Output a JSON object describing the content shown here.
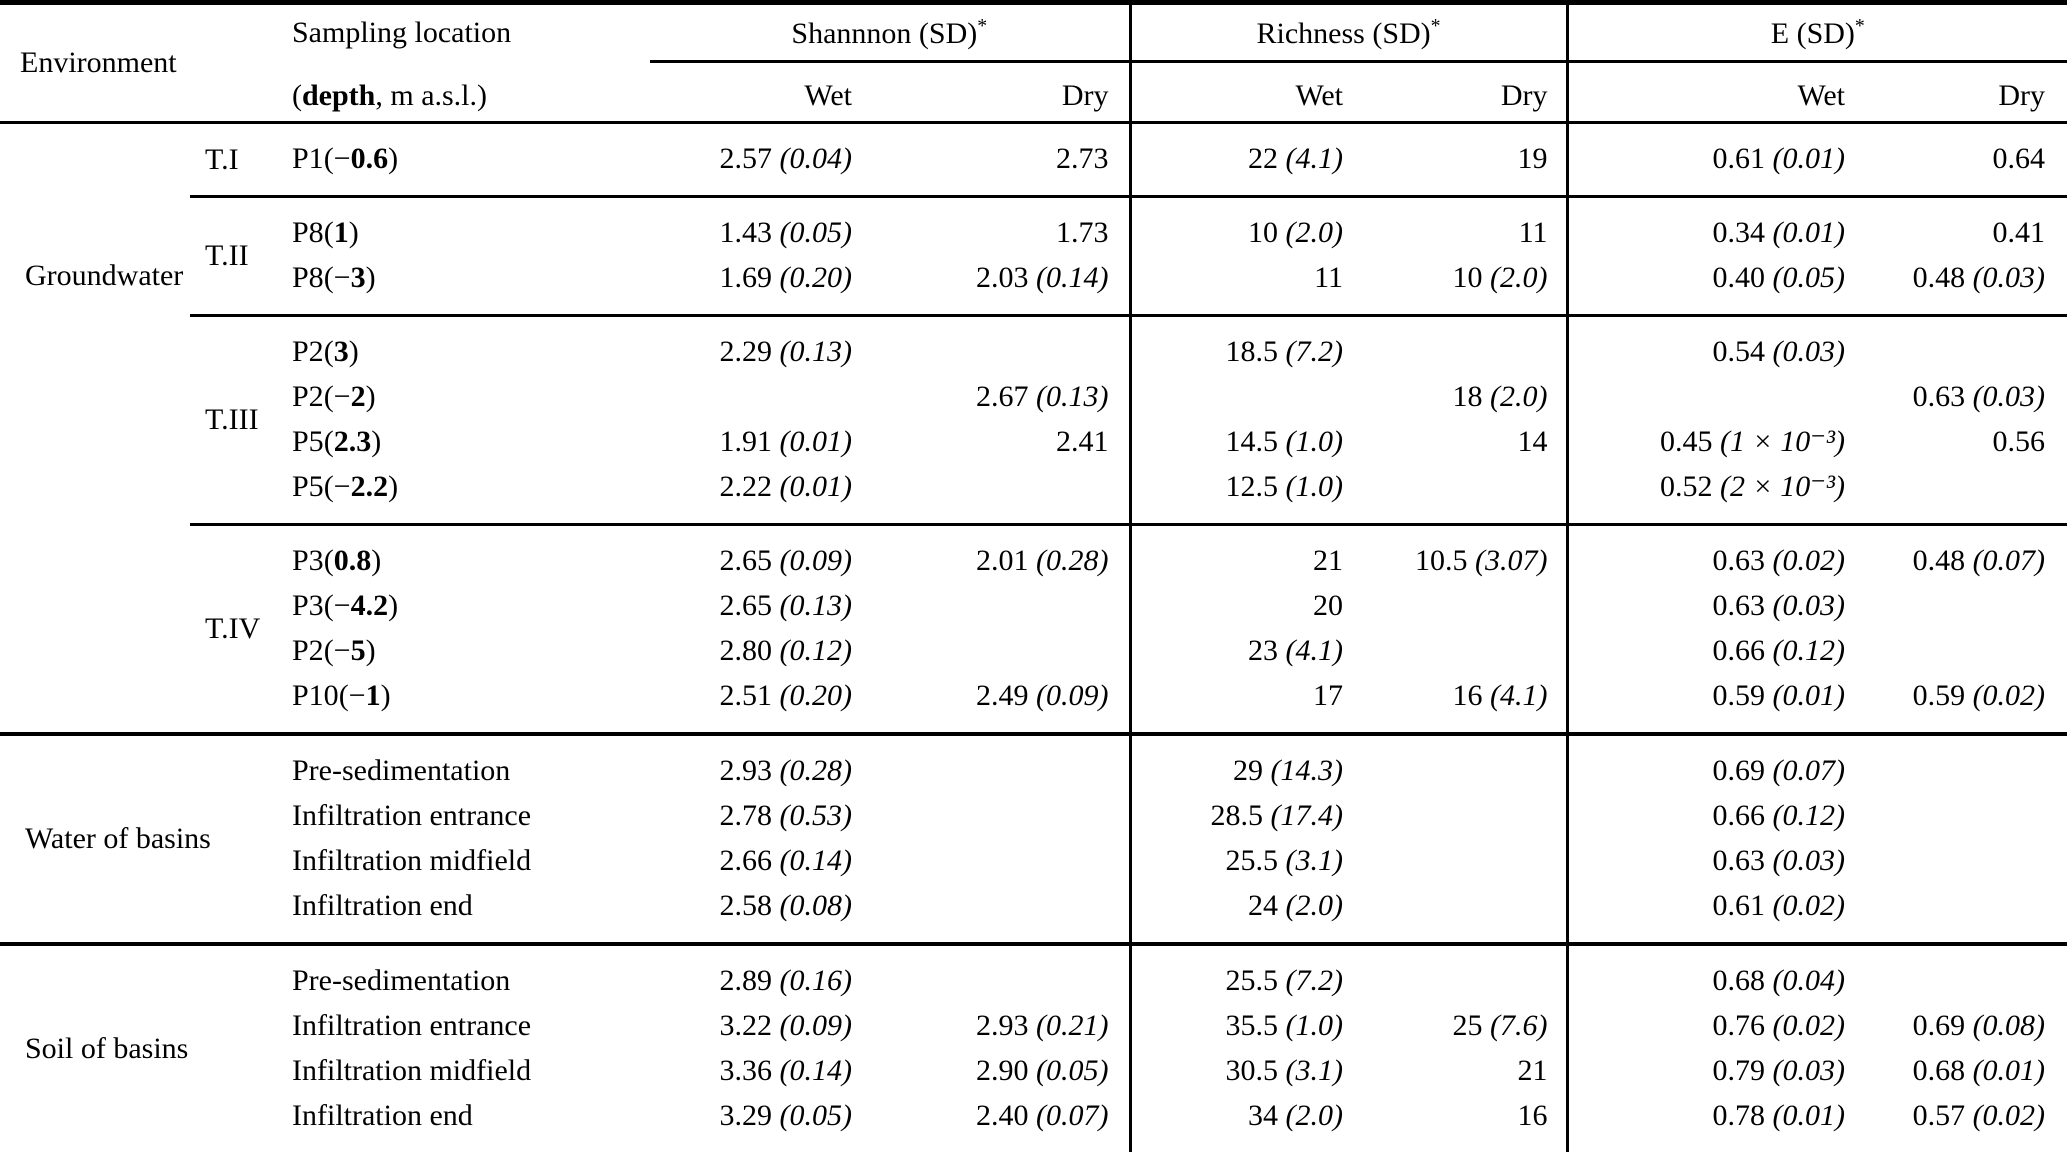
{
  "page": {
    "background": "#ffffff",
    "text_color": "#000000",
    "rule_color": "#000000"
  },
  "table": {
    "header": {
      "environment": "Environment",
      "sampling_line1": "Sampling location",
      "sampling_line2": {
        "prefix": "(",
        "bold": "depth",
        "rest": ", m a.s.l.)"
      },
      "groups": [
        {
          "label": "Shannnon (SD)",
          "star": "*"
        },
        {
          "label": "Richness (SD)",
          "star": "*"
        },
        {
          "label": "E (SD)",
          "star": "*"
        }
      ],
      "season_cols": [
        "Wet",
        "Dry",
        "Wet",
        "Dry",
        "Wet",
        "Dry"
      ]
    },
    "sections": [
      {
        "environment": "Groundwater",
        "groups": [
          {
            "label": "T.I",
            "rows": [
              {
                "location": "P1",
                "depth_sign": "−",
                "depth": "0.6",
                "shannon_wet": "2.57 (0.04)",
                "shannon_dry": "2.73",
                "richness_wet": "22 (4.1)",
                "richness_dry": "19",
                "evenness_wet": "0.61 (0.01)",
                "evenness_dry": "0.64"
              }
            ]
          },
          {
            "label": "T.II",
            "rows": [
              {
                "location": "P8",
                "depth_sign": "",
                "depth": "1",
                "shannon_wet": "1.43 (0.05)",
                "shannon_dry": "1.73",
                "richness_wet": "10 (2.0)",
                "richness_dry": "11",
                "evenness_wet": "0.34 (0.01)",
                "evenness_dry": "0.41"
              },
              {
                "location": "P8",
                "depth_sign": "−",
                "depth": "3",
                "shannon_wet": "1.69 (0.20)",
                "shannon_dry": "2.03 (0.14)",
                "richness_wet": "11",
                "richness_dry": "10 (2.0)",
                "evenness_wet": "0.40 (0.05)",
                "evenness_dry": "0.48 (0.03)"
              }
            ]
          },
          {
            "label": "T.III",
            "rows": [
              {
                "location": "P2",
                "depth_sign": "",
                "depth": "3",
                "shannon_wet": "2.29 (0.13)",
                "shannon_dry": "",
                "richness_wet": "18.5 (7.2)",
                "richness_dry": "",
                "evenness_wet": "0.54 (0.03)",
                "evenness_dry": ""
              },
              {
                "location": "P2",
                "depth_sign": "−",
                "depth": "2",
                "shannon_wet": "",
                "shannon_dry": "2.67 (0.13)",
                "richness_wet": "",
                "richness_dry": "18 (2.0)",
                "evenness_wet": "",
                "evenness_dry": "0.63 (0.03)"
              },
              {
                "location": "P5",
                "depth_sign": "",
                "depth": "2.3",
                "shannon_wet": "1.91 (0.01)",
                "shannon_dry": "2.41",
                "richness_wet": "14.5 (1.0)",
                "richness_dry": "14",
                "evenness_wet": "0.45 (1 × 10⁻³)",
                "evenness_dry": "0.56"
              },
              {
                "location": "P5",
                "depth_sign": "−",
                "depth": "2.2",
                "shannon_wet": "2.22 (0.01)",
                "shannon_dry": "",
                "richness_wet": "12.5 (1.0)",
                "richness_dry": "",
                "evenness_wet": "0.52 (2 × 10⁻³)",
                "evenness_dry": ""
              }
            ]
          },
          {
            "label": "T.IV",
            "rows": [
              {
                "location": "P3",
                "depth_sign": "",
                "depth": "0.8",
                "shannon_wet": "2.65 (0.09)",
                "shannon_dry": "2.01 (0.28)",
                "richness_wet": "21",
                "richness_dry": "10.5 (3.07)",
                "evenness_wet": "0.63 (0.02)",
                "evenness_dry": "0.48 (0.07)"
              },
              {
                "location": "P3",
                "depth_sign": "−",
                "depth": "4.2",
                "shannon_wet": "2.65 (0.13)",
                "shannon_dry": "",
                "richness_wet": "20",
                "richness_dry": "",
                "evenness_wet": "0.63 (0.03)",
                "evenness_dry": ""
              },
              {
                "location": "P2",
                "depth_sign": "−",
                "depth": "5",
                "shannon_wet": "2.80 (0.12)",
                "shannon_dry": "",
                "richness_wet": "23 (4.1)",
                "richness_dry": "",
                "evenness_wet": "0.66 (0.12)",
                "evenness_dry": ""
              },
              {
                "location": "P10",
                "depth_sign": "−",
                "depth": "1",
                "shannon_wet": "2.51 (0.20)",
                "shannon_dry": "2.49 (0.09)",
                "richness_wet": "17",
                "richness_dry": "16 (4.1)",
                "evenness_wet": "0.59 (0.01)",
                "evenness_dry": "0.59 (0.02)"
              }
            ]
          }
        ]
      },
      {
        "environment": "Water of basins",
        "groups": [
          {
            "label": "",
            "rows": [
              {
                "location": "Pre-sedimentation",
                "depth_sign": "",
                "depth": null,
                "shannon_wet": "2.93 (0.28)",
                "shannon_dry": "",
                "richness_wet": "29 (14.3)",
                "richness_dry": "",
                "evenness_wet": "0.69 (0.07)",
                "evenness_dry": ""
              },
              {
                "location": "Infiltration entrance",
                "depth_sign": "",
                "depth": null,
                "shannon_wet": "2.78 (0.53)",
                "shannon_dry": "",
                "richness_wet": "28.5 (17.4)",
                "richness_dry": "",
                "evenness_wet": "0.66 (0.12)",
                "evenness_dry": ""
              },
              {
                "location": "Infiltration midfield",
                "depth_sign": "",
                "depth": null,
                "shannon_wet": "2.66 (0.14)",
                "shannon_dry": "",
                "richness_wet": "25.5 (3.1)",
                "richness_dry": "",
                "evenness_wet": "0.63 (0.03)",
                "evenness_dry": ""
              },
              {
                "location": "Infiltration end",
                "depth_sign": "",
                "depth": null,
                "shannon_wet": "2.58 (0.08)",
                "shannon_dry": "",
                "richness_wet": "24 (2.0)",
                "richness_dry": "",
                "evenness_wet": "0.61 (0.02)",
                "evenness_dry": ""
              }
            ]
          }
        ]
      },
      {
        "environment": "Soil of basins",
        "groups": [
          {
            "label": "",
            "rows": [
              {
                "location": "Pre-sedimentation",
                "depth_sign": "",
                "depth": null,
                "shannon_wet": "2.89 (0.16)",
                "shannon_dry": "",
                "richness_wet": "25.5 (7.2)",
                "richness_dry": "",
                "evenness_wet": "0.68 (0.04)",
                "evenness_dry": ""
              },
              {
                "location": "Infiltration entrance",
                "depth_sign": "",
                "depth": null,
                "shannon_wet": "3.22 (0.09)",
                "shannon_dry": "2.93 (0.21)",
                "richness_wet": "35.5 (1.0)",
                "richness_dry": "25 (7.6)",
                "evenness_wet": "0.76 (0.02)",
                "evenness_dry": "0.69 (0.08)"
              },
              {
                "location": "Infiltration midfield",
                "depth_sign": "",
                "depth": null,
                "shannon_wet": "3.36 (0.14)",
                "shannon_dry": "2.90 (0.05)",
                "richness_wet": "30.5 (3.1)",
                "richness_dry": "21",
                "evenness_wet": "0.79 (0.03)",
                "evenness_dry": "0.68 (0.01)"
              },
              {
                "location": "Infiltration end",
                "depth_sign": "",
                "depth": null,
                "shannon_wet": "3.29 (0.05)",
                "shannon_dry": "2.40 (0.07)",
                "richness_wet": "34 (2.0)",
                "richness_dry": "16",
                "evenness_wet": "0.78 (0.01)",
                "evenness_dry": "0.57 (0.02)"
              }
            ]
          }
        ]
      }
    ]
  }
}
